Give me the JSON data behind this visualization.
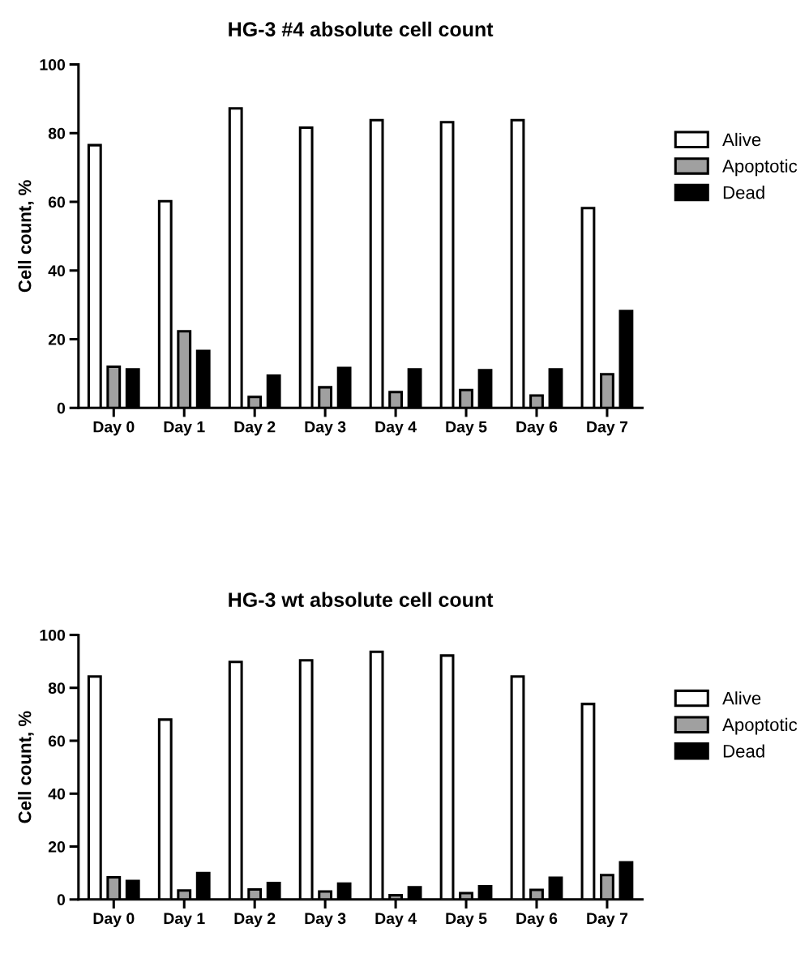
{
  "chart_data": [
    {
      "type": "bar",
      "title": "HG-3 #4 absolute cell count",
      "ylabel": "Cell count, %",
      "categories": [
        "Day 0",
        "Day 1",
        "Day 2",
        "Day 3",
        "Day 4",
        "Day 5",
        "Day 6",
        "Day 7"
      ],
      "ylim": [
        0,
        100
      ],
      "yticks": [
        0,
        20,
        40,
        60,
        80,
        100
      ],
      "grid": false,
      "legend": "right",
      "series": [
        {
          "name": "Alive",
          "color": "#ffffff",
          "values": [
            76.5,
            60.2,
            87.2,
            81.6,
            83.8,
            83.2,
            83.8,
            58.2
          ]
        },
        {
          "name": "Apoptotic",
          "color": "#a0a0a0",
          "values": [
            12,
            22.3,
            3.2,
            6,
            4.6,
            5.2,
            3.6,
            9.8
          ]
        },
        {
          "name": "Dead",
          "color": "#000000",
          "values": [
            11.2,
            16.6,
            9.4,
            11.6,
            11.2,
            11,
            11.2,
            28.2
          ]
        }
      ]
    },
    {
      "type": "bar",
      "title": "HG-3 wt absolute cell count",
      "ylabel": "Cell count, %",
      "categories": [
        "Day 0",
        "Day 1",
        "Day 2",
        "Day 3",
        "Day 4",
        "Day 5",
        "Day 6",
        "Day 7"
      ],
      "ylim": [
        0,
        100
      ],
      "yticks": [
        0,
        20,
        40,
        60,
        80,
        100
      ],
      "grid": false,
      "legend": "right",
      "series": [
        {
          "name": "Alive",
          "color": "#ffffff",
          "values": [
            84.3,
            68,
            89.8,
            90.4,
            93.6,
            92.2,
            84.3,
            73.9
          ]
        },
        {
          "name": "Apoptotic",
          "color": "#a0a0a0",
          "values": [
            8.4,
            3.4,
            3.8,
            3,
            1.6,
            2.4,
            3.6,
            9.2
          ]
        },
        {
          "name": "Dead",
          "color": "#000000",
          "values": [
            7,
            10,
            6.2,
            6,
            4.6,
            5,
            8.2,
            14
          ]
        }
      ]
    }
  ]
}
